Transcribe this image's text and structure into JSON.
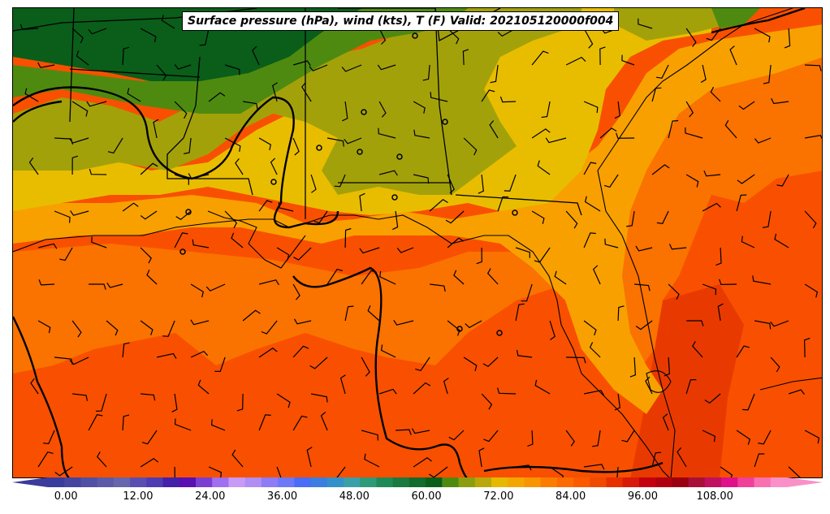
{
  "title": "Surface pressure (hPa), wind (kts), T (F) Valid: 202105120000f004",
  "colorbar": {
    "min": -3,
    "max": 120,
    "tick_labels": [
      "0.00",
      "12.00",
      "24.00",
      "36.00",
      "48.00",
      "60.00",
      "72.00",
      "84.00",
      "96.00",
      "108.00"
    ],
    "tick_values": [
      0,
      12,
      24,
      36,
      48,
      60,
      72,
      84,
      96,
      108
    ],
    "colors": [
      "#3b3b9b",
      "#45459f",
      "#5050a5",
      "#5b5ba8",
      "#6666ac",
      "#5a4fb0",
      "#4f3cb0",
      "#4520a8",
      "#5a0fb0",
      "#7a3fd0",
      "#9f6ff0",
      "#c79bf5",
      "#b08ef2",
      "#8d7cf5",
      "#6d78f7",
      "#4a6cf7",
      "#3b7ee0",
      "#3490c8",
      "#3aa0a8",
      "#2f9a78",
      "#1f8a55",
      "#1a7a40",
      "#136b2c",
      "#0a5e1a",
      "#4f8a10",
      "#8a9e10",
      "#b8a80a",
      "#e6b800",
      "#f3a600",
      "#f89400",
      "#fb7c00",
      "#fc6a00",
      "#fb5a00",
      "#f04a00",
      "#e63000",
      "#d81a0a",
      "#c5000e",
      "#b00010",
      "#9a0010",
      "#a8103a",
      "#c01060",
      "#e0108a",
      "#f0409a",
      "#f870b0",
      "#fa90c8"
    ]
  },
  "colors": {
    "dark_green": "#0a5e1a",
    "green": "#4f8a10",
    "olive": "#a3a10a",
    "mustard": "#e8bd00",
    "light_orange": "#f8a000",
    "orange": "#fa7200",
    "red_orange": "#f85000",
    "dark_red_orange": "#e83a00"
  }
}
